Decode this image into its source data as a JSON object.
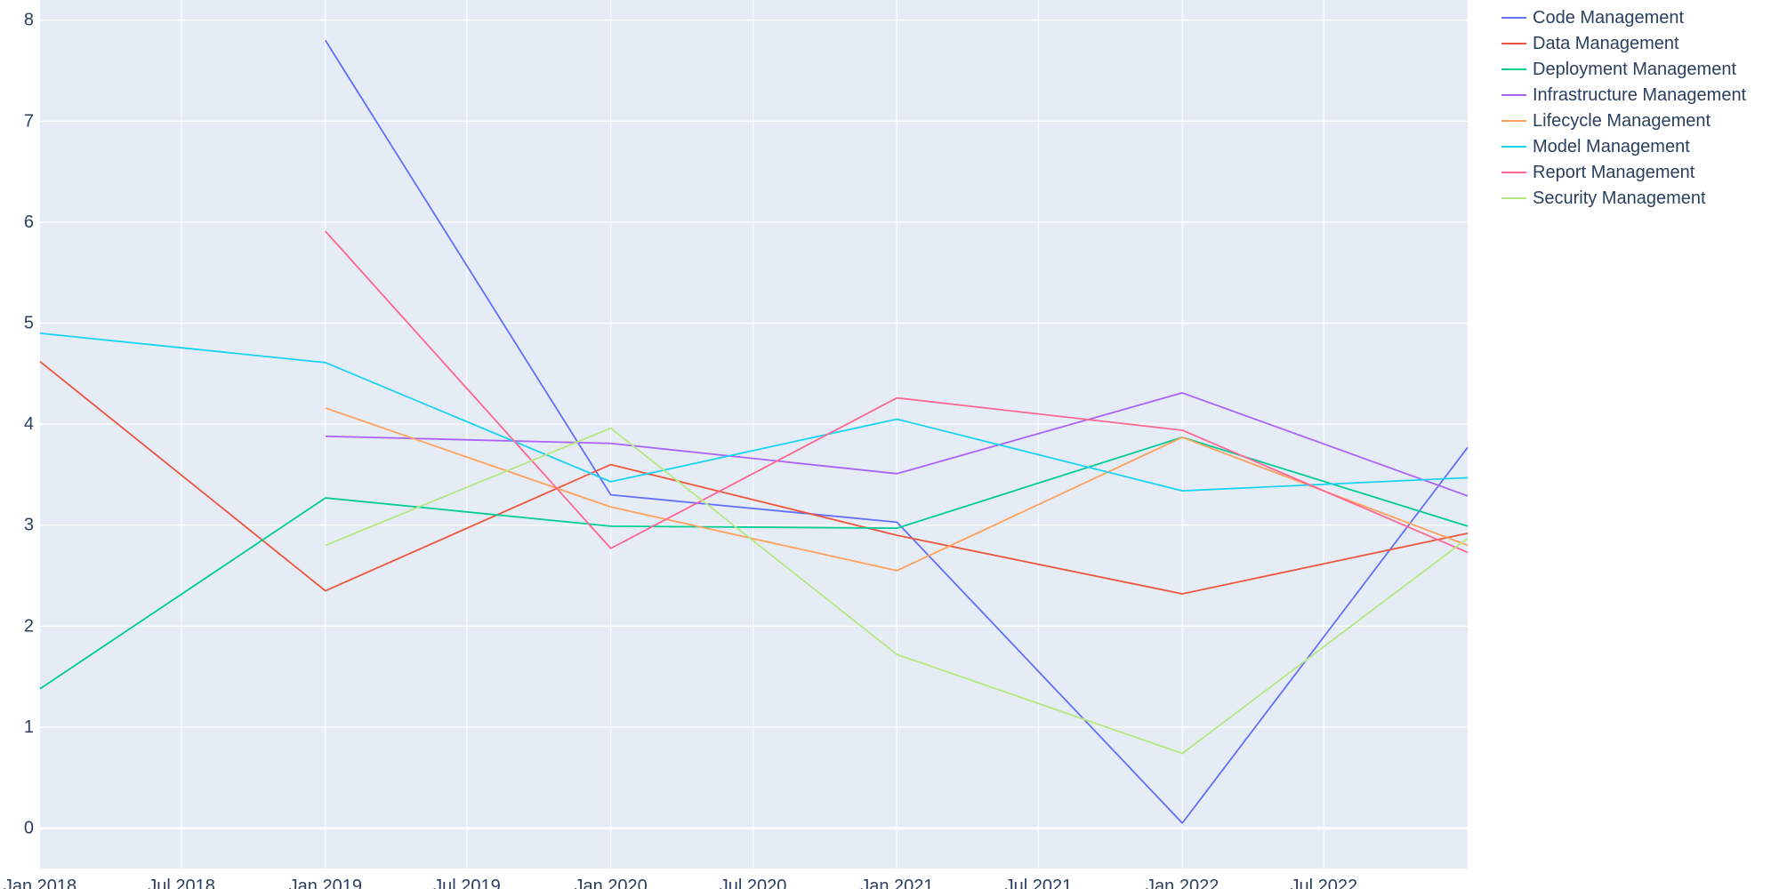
{
  "chart_data": {
    "type": "line",
    "title": "",
    "xlabel": "",
    "ylabel": "",
    "x_axis": {
      "type": "date",
      "range": [
        "2018-01-01",
        "2023-01-01"
      ],
      "tick_values": [
        "2018-01-01",
        "2018-07-01",
        "2019-01-01",
        "2019-07-01",
        "2020-01-01",
        "2020-07-01",
        "2021-01-01",
        "2021-07-01",
        "2022-01-01",
        "2022-07-01"
      ],
      "tick_labels": [
        "Jan 2018",
        "Jul 2018",
        "Jan 2019",
        "Jul 2019",
        "Jan 2020",
        "Jul 2020",
        "Jan 2021",
        "Jul 2021",
        "Jan 2022",
        "Jul 2022"
      ]
    },
    "y_axis": {
      "range": [
        -0.4,
        8.2
      ],
      "tick_values": [
        0,
        1,
        2,
        3,
        4,
        5,
        6,
        7,
        8
      ],
      "tick_labels": [
        "0",
        "1",
        "2",
        "3",
        "4",
        "5",
        "6",
        "7",
        "8"
      ]
    },
    "grid": true,
    "plot_background": "#e5ecf6",
    "legend_position": "top-right-outside",
    "x": [
      "2018-01-01",
      "2019-01-01",
      "2020-01-01",
      "2021-01-01",
      "2022-01-01",
      "2023-01-01"
    ],
    "series": [
      {
        "name": "Code Management",
        "color": "#636efa",
        "values": [
          null,
          7.8,
          3.3,
          3.03,
          0.05,
          3.77
        ]
      },
      {
        "name": "Data Management",
        "color": "#ef553b",
        "values": [
          4.62,
          2.35,
          3.6,
          2.9,
          2.32,
          2.92
        ]
      },
      {
        "name": "Deployment Management",
        "color": "#00cc96",
        "values": [
          1.38,
          3.27,
          2.99,
          2.97,
          3.87,
          2.99
        ]
      },
      {
        "name": "Infrastructure Management",
        "color": "#ab63fa",
        "values": [
          null,
          3.88,
          3.81,
          3.51,
          4.31,
          3.29
        ]
      },
      {
        "name": "Lifecycle Management",
        "color": "#ffa15a",
        "values": [
          null,
          4.16,
          3.18,
          2.55,
          3.87,
          2.8
        ]
      },
      {
        "name": "Model Management",
        "color": "#19d3f3",
        "values": [
          4.9,
          4.61,
          3.43,
          4.05,
          3.34,
          3.47
        ]
      },
      {
        "name": "Report Management",
        "color": "#ff6692",
        "values": [
          null,
          5.91,
          2.77,
          4.26,
          3.94,
          2.73
        ]
      },
      {
        "name": "Security Management",
        "color": "#b6e880",
        "values": [
          null,
          2.8,
          3.96,
          1.72,
          0.74,
          2.87
        ]
      }
    ]
  }
}
